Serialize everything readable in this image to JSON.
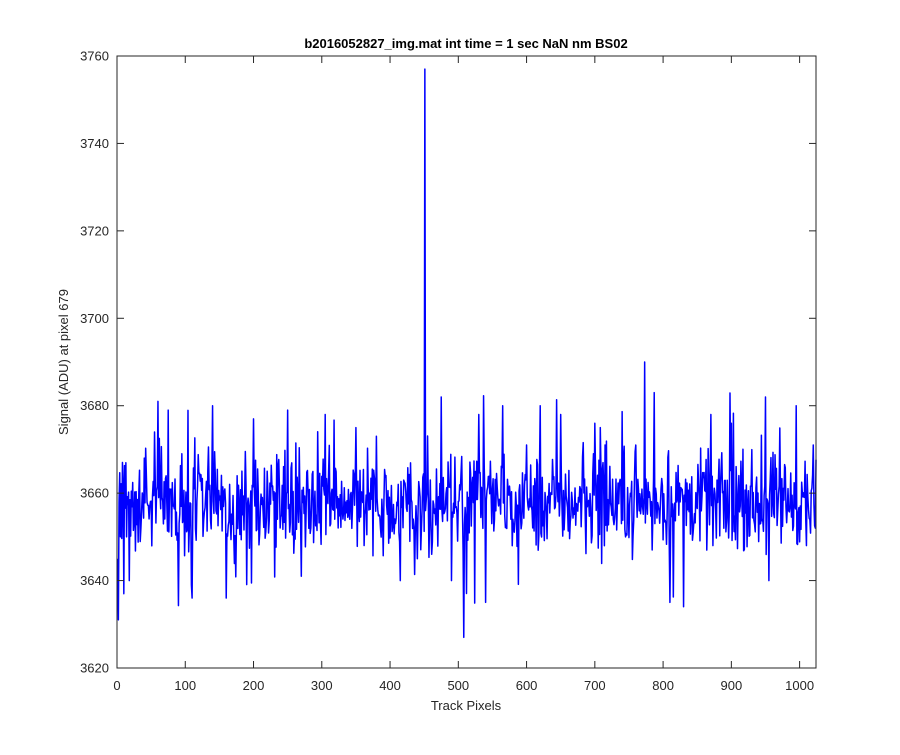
{
  "chart_data": {
    "type": "line",
    "title": "b2016052827_img.mat int time = 1 sec  NaN nm BS02",
    "xlabel": "Track Pixels",
    "ylabel": "Signal (ADU) at pixel 679",
    "xlim": [
      0,
      1024
    ],
    "ylim": [
      3620,
      3760
    ],
    "xticks": [
      0,
      100,
      200,
      300,
      400,
      500,
      600,
      700,
      800,
      900,
      1000
    ],
    "yticks": [
      3620,
      3640,
      3660,
      3680,
      3700,
      3720,
      3740,
      3760
    ],
    "grid": false,
    "legend": "none",
    "series": [
      {
        "color": "#0000ff",
        "description_points": "key visible samples (pixel, ADU); remaining samples are noise around a baseline of ~3658",
        "baseline": 3658,
        "noise_amplitude": 8,
        "n_points": 1024,
        "key_points": [
          [
            1,
            3645
          ],
          [
            2,
            3631
          ],
          [
            5,
            3650
          ],
          [
            8,
            3667
          ],
          [
            10,
            3637
          ],
          [
            14,
            3650
          ],
          [
            18,
            3640
          ],
          [
            40,
            3668
          ],
          [
            55,
            3674
          ],
          [
            60,
            3681
          ],
          [
            75,
            3679
          ],
          [
            95,
            3669
          ],
          [
            110,
            3636
          ],
          [
            140,
            3680
          ],
          [
            160,
            3636
          ],
          [
            200,
            3677
          ],
          [
            250,
            3679
          ],
          [
            270,
            3641
          ],
          [
            305,
            3678
          ],
          [
            350,
            3675
          ],
          [
            380,
            3673
          ],
          [
            415,
            3640
          ],
          [
            440,
            3645
          ],
          [
            451,
            3757
          ],
          [
            452,
            3656
          ],
          [
            460,
            3652
          ],
          [
            475,
            3682
          ],
          [
            490,
            3640
          ],
          [
            508,
            3627
          ],
          [
            530,
            3678
          ],
          [
            540,
            3635
          ],
          [
            565,
            3680
          ],
          [
            600,
            3671
          ],
          [
            620,
            3680
          ],
          [
            650,
            3678
          ],
          [
            700,
            3676
          ],
          [
            715,
            3671
          ],
          [
            760,
            3671
          ],
          [
            773,
            3690
          ],
          [
            787,
            3683
          ],
          [
            810,
            3635
          ],
          [
            830,
            3634
          ],
          [
            870,
            3678
          ],
          [
            900,
            3676
          ],
          [
            950,
            3682
          ],
          [
            955,
            3640
          ],
          [
            995,
            3680
          ],
          [
            1010,
            3648
          ],
          [
            1020,
            3671
          ],
          [
            1023,
            3652
          ]
        ]
      }
    ]
  }
}
